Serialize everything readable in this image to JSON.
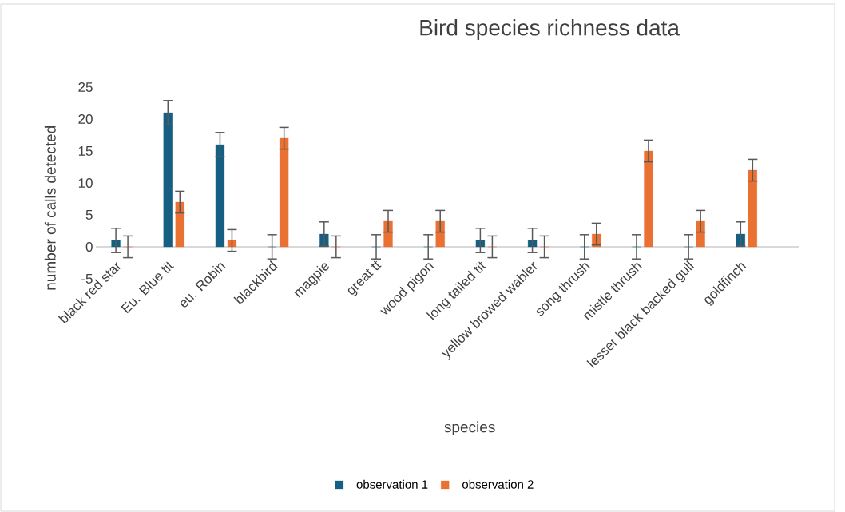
{
  "chart_data": {
    "type": "bar",
    "title": "Bird species richness data",
    "xlabel": "species",
    "ylabel": "number of calls detected",
    "categories": [
      "black red star",
      "Eu. Blue tit",
      "eu. Robin",
      "blackbird",
      "magpie",
      "great tt",
      "wood pigon",
      "long tailed tit",
      "yellow browed wabler",
      "song thrush",
      "mistle thrush",
      "lesser black backed gull",
      "goldfinch"
    ],
    "series": [
      {
        "name": "observation 1",
        "color": "#156082",
        "values": [
          1,
          21,
          16,
          0,
          2,
          0,
          0,
          1,
          1,
          0,
          0,
          0,
          2
        ],
        "errors": [
          1.9,
          1.9,
          1.9,
          1.9,
          1.9,
          1.9,
          1.9,
          1.9,
          1.9,
          1.9,
          1.9,
          1.9,
          1.9
        ]
      },
      {
        "name": "observation 2",
        "color": "#e97132",
        "values": [
          0,
          7,
          1,
          17,
          0,
          4,
          4,
          0,
          0,
          2,
          15,
          4,
          12
        ],
        "errors": [
          1.7,
          1.7,
          1.7,
          1.7,
          1.7,
          1.7,
          1.7,
          1.7,
          1.7,
          1.7,
          1.7,
          1.7,
          1.7
        ]
      }
    ],
    "ylim": [
      -5,
      25
    ],
    "yticks": [
      -5,
      0,
      5,
      10,
      15,
      20,
      25
    ],
    "legend": "bottom"
  }
}
